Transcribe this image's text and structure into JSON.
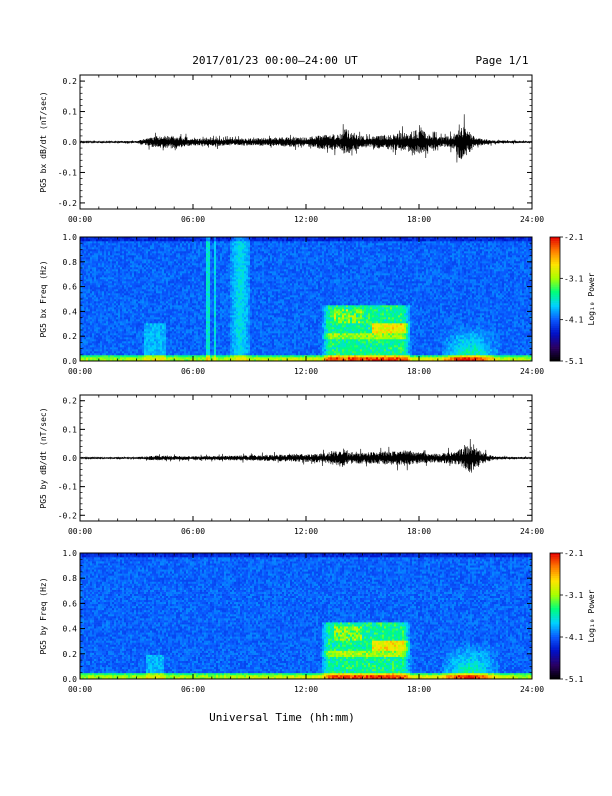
{
  "header": {
    "title": "2017/01/23  00:00–24:00 UT",
    "page": "Page 1/1"
  },
  "footer": {
    "xlabel": "Universal Time (hh:mm)"
  },
  "colors": {
    "trace": "#000000",
    "colormap": [
      "#000000",
      "#2a0066",
      "#0010c8",
      "#0a5aff",
      "#00d2ff",
      "#00ff7a",
      "#a8ff00",
      "#ffe400",
      "#ff7a00",
      "#e60000"
    ]
  },
  "chart_data": [
    {
      "type": "line",
      "ylabel": "PG5 bx dB/dt (nT/sec)",
      "x_ticks": [
        "00:00",
        "06:00",
        "12:00",
        "18:00",
        "24:00"
      ],
      "y_ticks": [
        "0.2",
        "0.1",
        "0.0",
        "-0.1",
        "-0.2"
      ],
      "xlim_hours": [
        0,
        24
      ],
      "ylim": [
        -0.22,
        0.22
      ],
      "envelope_x_hours": [
        0,
        3,
        4,
        5,
        6,
        7,
        8,
        10,
        12,
        13,
        13.9,
        14,
        15,
        16,
        17.4,
        18,
        19,
        19.9,
        20.2,
        21,
        22,
        24
      ],
      "envelope_y": [
        0.004,
        0.006,
        0.035,
        0.04,
        0.02,
        0.025,
        0.02,
        0.025,
        0.03,
        0.045,
        0.05,
        0.085,
        0.035,
        0.04,
        0.06,
        0.075,
        0.03,
        0.04,
        0.12,
        0.025,
        0.01,
        0.006
      ]
    },
    {
      "type": "heatmap",
      "ylabel": "PG5 bx Freq (Hz)",
      "x_ticks": [
        "00:00",
        "06:00",
        "12:00",
        "18:00",
        "24:00"
      ],
      "y_ticks": [
        "1.0",
        "0.8",
        "0.6",
        "0.4",
        "0.2",
        "0.0"
      ],
      "xlim_hours": [
        0,
        24
      ],
      "ylim_hz": [
        0,
        1.0
      ],
      "colorbar": {
        "label": "Log₁₀ Power",
        "ticks": [
          "-2.1",
          "-3.1",
          "-4.1",
          "-5.1"
        ],
        "range": [
          -5.1,
          -2.1
        ]
      },
      "features": "broadband low-frequency power below 0.05 Hz all day; vertical broadband stripes near 06:50, 07:15 and 08:00-09:00; enhanced 0.1-0.45 Hz activity 13:00-17:30; enhanced low-frequency power 19:30-22:00"
    },
    {
      "type": "line",
      "ylabel": "PG5 by dB/dt (nT/sec)",
      "x_ticks": [
        "00:00",
        "06:00",
        "12:00",
        "18:00",
        "24:00"
      ],
      "y_ticks": [
        "0.2",
        "0.1",
        "0.0",
        "-0.1",
        "-0.2"
      ],
      "xlim_hours": [
        0,
        24
      ],
      "ylim": [
        -0.22,
        0.22
      ],
      "envelope_x_hours": [
        0,
        3,
        4,
        6,
        8,
        10,
        12,
        13,
        14,
        14.2,
        15,
        16,
        17.4,
        18,
        19,
        20,
        20.8,
        21.3,
        22,
        24
      ],
      "envelope_y": [
        0.005,
        0.006,
        0.015,
        0.012,
        0.015,
        0.02,
        0.025,
        0.03,
        0.06,
        0.04,
        0.035,
        0.04,
        0.05,
        0.035,
        0.03,
        0.04,
        0.1,
        0.04,
        0.01,
        0.006
      ]
    },
    {
      "type": "heatmap",
      "ylabel": "PG5 by Freq (Hz)",
      "x_ticks": [
        "00:00",
        "06:00",
        "12:00",
        "18:00",
        "24:00"
      ],
      "y_ticks": [
        "1.0",
        "0.8",
        "0.6",
        "0.4",
        "0.2",
        "0.0"
      ],
      "xlim_hours": [
        0,
        24
      ],
      "ylim_hz": [
        0,
        1.0
      ],
      "colorbar": {
        "label": "Log₁₀ Power",
        "ticks": [
          "-2.1",
          "-3.1",
          "-4.1",
          "-5.1"
        ],
        "range": [
          -5.1,
          -2.1
        ]
      },
      "features": "broadband low-frequency power below 0.05 Hz all day; enhanced 0.1-0.45 Hz activity 13:00-17:00; enhanced low-frequency power 19:30-22:00"
    }
  ]
}
